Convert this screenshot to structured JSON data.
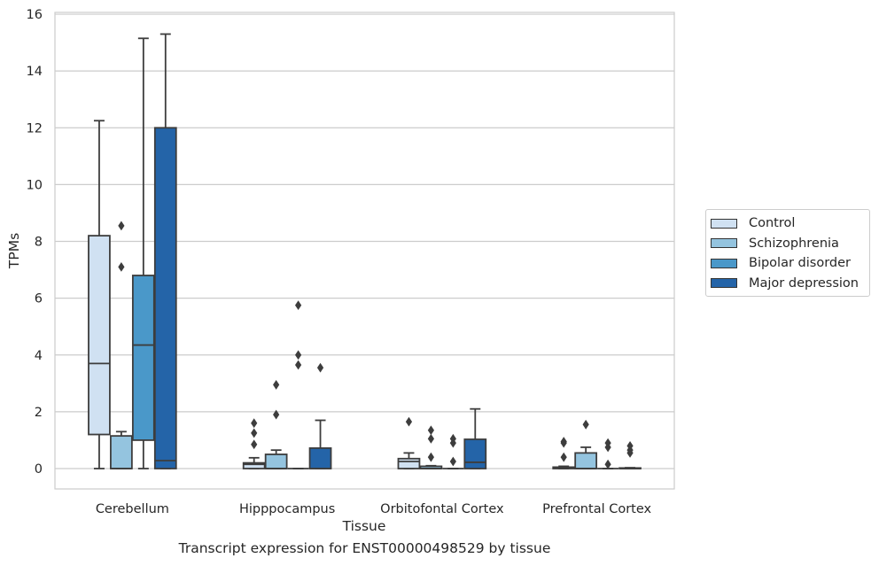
{
  "chart_data": {
    "type": "box",
    "caption": "Transcript expression for ENST00000498529 by tissue",
    "xlabel": "Tissue",
    "ylabel": "TPMs",
    "ylim": [
      -0.7,
      16.1
    ],
    "yticks": [
      0,
      2,
      4,
      6,
      8,
      10,
      12,
      14,
      16
    ],
    "grid": "horizontal",
    "legend_position": "right",
    "categories": [
      "Cerebellum",
      "Hipppocampus",
      "Orbitofontal Cortex",
      "Prefrontal Cortex"
    ],
    "series": [
      {
        "name": "Control",
        "color": "#d0e1f2",
        "boxes": [
          {
            "whislo": 0,
            "q1": 1.2,
            "med": 3.7,
            "q3": 8.2,
            "whishi": 12.25,
            "fliers": []
          },
          {
            "whislo": 0,
            "q1": 0.0,
            "med": 0.15,
            "q3": 0.2,
            "whishi": 0.38,
            "fliers": [
              0.85,
              1.25,
              1.6
            ]
          },
          {
            "whislo": 0,
            "q1": 0.0,
            "med": 0.25,
            "q3": 0.35,
            "whishi": 0.55,
            "fliers": [
              1.65
            ]
          },
          {
            "whislo": 0,
            "q1": 0.0,
            "med": 0.03,
            "q3": 0.05,
            "whishi": 0.08,
            "fliers": [
              0.4,
              0.9,
              0.95
            ]
          }
        ]
      },
      {
        "name": "Schizophrenia",
        "color": "#94c4df",
        "boxes": [
          {
            "whislo": 0,
            "q1": 0.0,
            "med": 0.0,
            "q3": 1.15,
            "whishi": 1.3,
            "fliers": [
              7.1,
              8.55
            ]
          },
          {
            "whislo": 0,
            "q1": 0.0,
            "med": 0.0,
            "q3": 0.5,
            "whishi": 0.65,
            "fliers": [
              1.9,
              2.95
            ]
          },
          {
            "whislo": 0,
            "q1": 0.0,
            "med": 0.0,
            "q3": 0.08,
            "whishi": 0.1,
            "fliers": [
              0.4,
              1.05,
              1.35
            ]
          },
          {
            "whislo": 0,
            "q1": 0.0,
            "med": 0.0,
            "q3": 0.55,
            "whishi": 0.75,
            "fliers": [
              1.55
            ]
          }
        ]
      },
      {
        "name": "Bipolar disorder",
        "color": "#4a98c9",
        "boxes": [
          {
            "whislo": 0,
            "q1": 1.0,
            "med": 4.35,
            "q3": 6.8,
            "whishi": 15.15,
            "fliers": []
          },
          {
            "whislo": 0,
            "q1": 0.0,
            "med": 0.0,
            "q3": 0.0,
            "whishi": 0.0,
            "fliers": [
              3.65,
              4.0,
              5.75
            ]
          },
          {
            "whislo": 0,
            "q1": 0.0,
            "med": 0.0,
            "q3": 0.0,
            "whishi": 0.0,
            "fliers": [
              0.25,
              0.9,
              1.05
            ]
          },
          {
            "whislo": 0,
            "q1": 0.0,
            "med": 0.0,
            "q3": 0.0,
            "whishi": 0.0,
            "fliers": [
              0.15,
              0.75,
              0.9
            ]
          }
        ]
      },
      {
        "name": "Major depression",
        "color": "#2464a8",
        "boxes": [
          {
            "whislo": 0,
            "q1": 0.0,
            "med": 0.28,
            "q3": 12.0,
            "whishi": 15.3,
            "fliers": []
          },
          {
            "whislo": 0,
            "q1": 0.0,
            "med": 0.0,
            "q3": 0.72,
            "whishi": 1.7,
            "fliers": [
              3.55
            ]
          },
          {
            "whislo": 0,
            "q1": 0.0,
            "med": 0.22,
            "q3": 1.03,
            "whishi": 2.1,
            "fliers": []
          },
          {
            "whislo": 0,
            "q1": 0.0,
            "med": 0.0,
            "q3": 0.02,
            "whishi": 0.03,
            "fliers": [
              0.55,
              0.65,
              0.8
            ]
          }
        ]
      }
    ]
  }
}
